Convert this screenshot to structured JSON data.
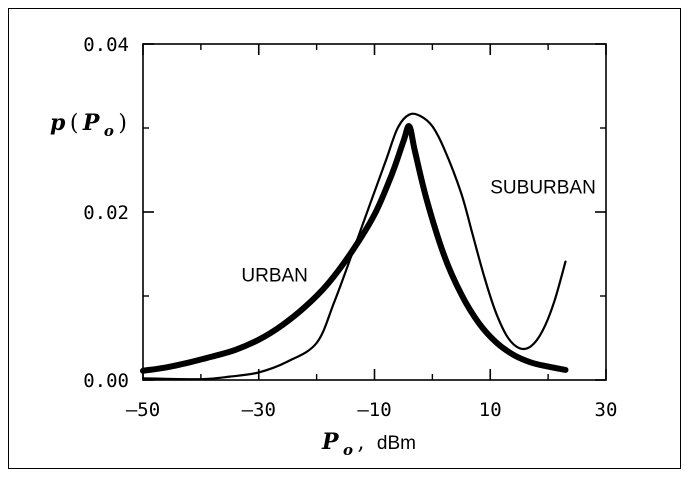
{
  "chart_data": {
    "type": "line",
    "xlabel": {
      "var": "P",
      "sub": "o",
      "comma": ",",
      "unit": "dBm"
    },
    "ylabel": {
      "var": "p",
      "open": "(",
      "inner": "P",
      "sub": "o",
      "close": ")"
    },
    "xlim": [
      -50,
      30
    ],
    "ylim": [
      0,
      0.04
    ],
    "xticks": [
      {
        "value": -50,
        "label": "–50"
      },
      {
        "value": -30,
        "label": "–30"
      },
      {
        "value": -10,
        "label": "–10"
      },
      {
        "value": 10,
        "label": "10"
      },
      {
        "value": 30,
        "label": "30"
      }
    ],
    "yticks": [
      {
        "value": 0,
        "label": "0.00"
      },
      {
        "value": 0.02,
        "label": "0.02"
      },
      {
        "value": 0.04,
        "label": "0.04"
      }
    ],
    "minor_xticks": [
      -40,
      -20,
      0,
      20
    ],
    "minor_yticks": [
      0.01,
      0.03
    ],
    "grid": false,
    "legend": "none",
    "series": [
      {
        "name": "URBAN",
        "color": "#000000",
        "style": "thick",
        "points": [
          [
            -50,
            0.0011
          ],
          [
            -46,
            0.0015
          ],
          [
            -42,
            0.0021
          ],
          [
            -38,
            0.0028
          ],
          [
            -34,
            0.0036
          ],
          [
            -30,
            0.0048
          ],
          [
            -26,
            0.0065
          ],
          [
            -22,
            0.0087
          ],
          [
            -18,
            0.0115
          ],
          [
            -14,
            0.0152
          ],
          [
            -10,
            0.0197
          ],
          [
            -7,
            0.0245
          ],
          [
            -5,
            0.0284
          ],
          [
            -4,
            0.0302
          ],
          [
            -3,
            0.0272
          ],
          [
            -1,
            0.0215
          ],
          [
            2,
            0.0149
          ],
          [
            5,
            0.0102
          ],
          [
            8,
            0.0068
          ],
          [
            11,
            0.0045
          ],
          [
            14,
            0.003
          ],
          [
            17,
            0.0021
          ],
          [
            20,
            0.0016
          ],
          [
            23,
            0.0012
          ]
        ]
      },
      {
        "name": "SUBURBAN",
        "color": "#000000",
        "style": "thin",
        "points": [
          [
            -50,
            0.0002
          ],
          [
            -40,
            0.0001
          ],
          [
            -35,
            0.0004
          ],
          [
            -30,
            0.0009
          ],
          [
            -25,
            0.0022
          ],
          [
            -20,
            0.0044
          ],
          [
            -17,
            0.0092
          ],
          [
            -14,
            0.0148
          ],
          [
            -11,
            0.0205
          ],
          [
            -8,
            0.0262
          ],
          [
            -6,
            0.03
          ],
          [
            -4,
            0.0316
          ],
          [
            -2,
            0.0314
          ],
          [
            0,
            0.0302
          ],
          [
            2,
            0.0276
          ],
          [
            5,
            0.0222
          ],
          [
            7,
            0.0172
          ],
          [
            9,
            0.0122
          ],
          [
            11,
            0.008
          ],
          [
            13,
            0.0051
          ],
          [
            15,
            0.0038
          ],
          [
            17,
            0.004
          ],
          [
            19,
            0.0058
          ],
          [
            21,
            0.0092
          ],
          [
            23,
            0.0141
          ]
        ]
      }
    ],
    "annotations": [
      {
        "text": "SUBURBAN",
        "x": 10,
        "y": 0.0222
      },
      {
        "text": "URBAN",
        "x": -33,
        "y": 0.0117
      }
    ]
  }
}
